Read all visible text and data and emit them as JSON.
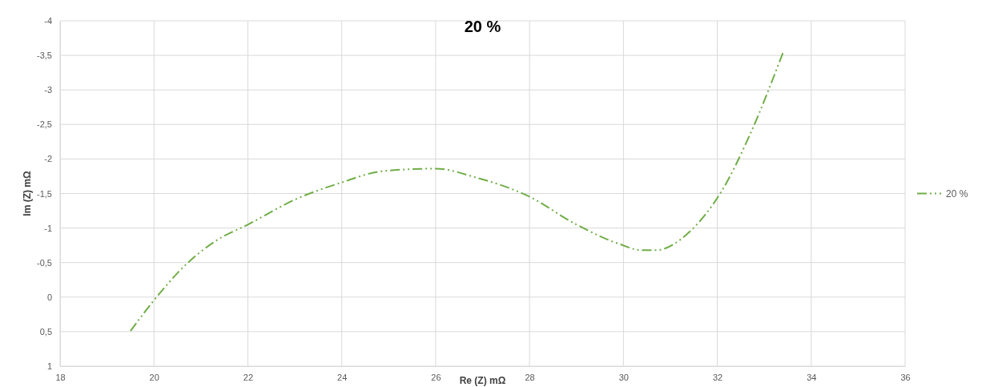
{
  "chart_data": {
    "type": "line",
    "title": "20 %",
    "xlabel": "Re (Z) mΩ",
    "ylabel": "Im (Z) mΩ",
    "xlim": [
      18,
      36
    ],
    "xticks": [
      18,
      20,
      22,
      24,
      26,
      28,
      30,
      32,
      34,
      36
    ],
    "ylim": [
      1,
      -4
    ],
    "yticks": [
      {
        "value": 1,
        "label": "1"
      },
      {
        "value": 0.5,
        "label": "0,5"
      },
      {
        "value": 0,
        "label": "0"
      },
      {
        "value": -0.5,
        "label": "-0,5"
      },
      {
        "value": -1,
        "label": "-1"
      },
      {
        "value": -1.5,
        "label": "-1,5"
      },
      {
        "value": -2,
        "label": "-2"
      },
      {
        "value": -2.5,
        "label": "-2,5"
      },
      {
        "value": -3,
        "label": "-3"
      },
      {
        "value": -3.5,
        "label": "-3,5"
      },
      {
        "value": -4,
        "label": "-4"
      }
    ],
    "grid": true,
    "legend": "right",
    "line_style": "dashed",
    "marker": "none",
    "x": [
      19.5,
      19.96,
      20.68,
      21.33,
      22,
      23.03,
      24,
      24.74,
      25.42,
      26,
      26.87,
      27.98,
      29,
      29.95,
      30.37,
      30.7,
      31.4,
      31.74,
      32.08,
      32.68,
      33.4
    ],
    "series": [
      {
        "name": "20 %",
        "color": "#70ad47",
        "values": [
          0.49,
          0.08,
          -0.47,
          -0.82,
          -1.05,
          -1.42,
          -1.66,
          -1.81,
          -1.85,
          -1.86,
          -1.73,
          -1.46,
          -1.05,
          -0.76,
          -0.68,
          -0.68,
          -0.94,
          -1.19,
          -1.52,
          -2.33,
          -3.54
        ]
      }
    ]
  }
}
